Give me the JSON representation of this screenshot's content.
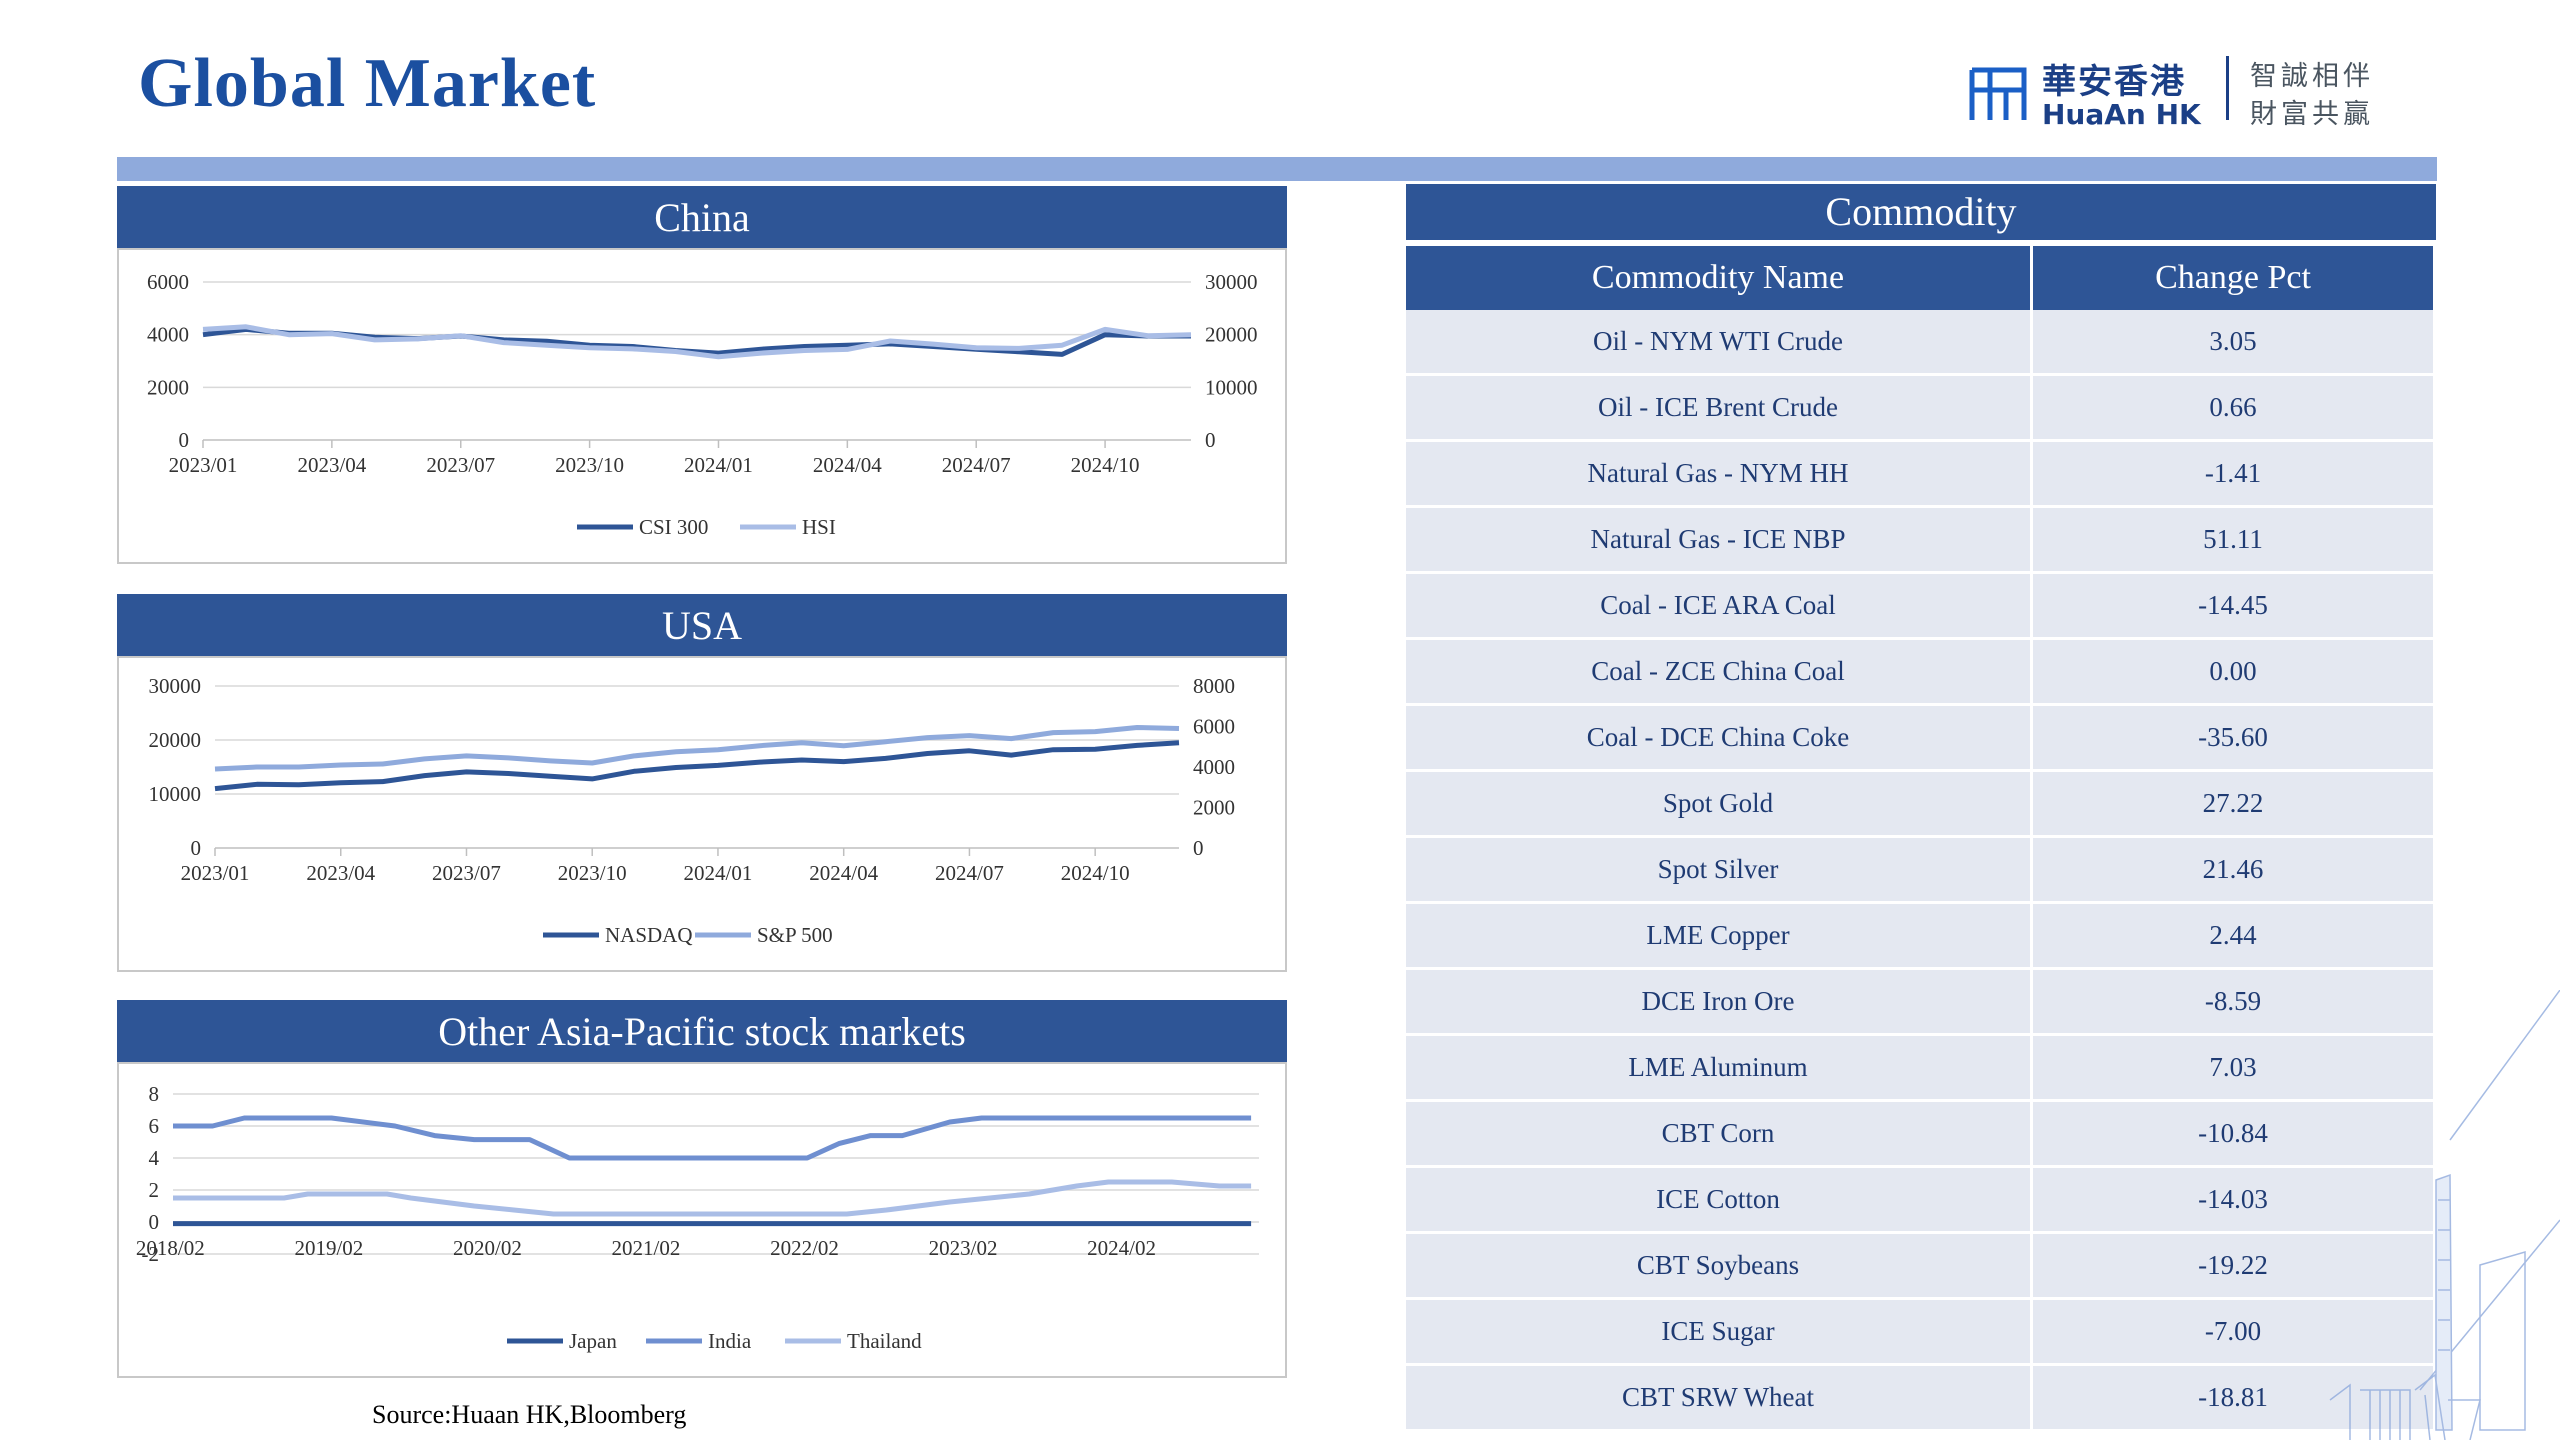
{
  "page": {
    "title": "Global Market",
    "source": "Source:Huaan HK,Bloomberg"
  },
  "logo": {
    "cn": "華安香港",
    "en": "HuaAn HK",
    "slogan_1": "智誠相伴",
    "slogan_2": "財富共贏"
  },
  "colors": {
    "header": "#2e5596",
    "bar": "#8faadc",
    "series_dark": "#2e5596",
    "series_mid": "#6f8fd0",
    "series_light": "#a9bde6"
  },
  "panels": {
    "china": "China",
    "usa": "USA",
    "apac": "Other Asia-Pacific stock markets"
  },
  "chart_data": [
    {
      "type": "line",
      "title": "China",
      "x_ticks": [
        "2023/01",
        "2023/04",
        "2023/07",
        "2023/10",
        "2024/01",
        "2024/04",
        "2024/07",
        "2024/10"
      ],
      "y_left_ticks": [
        "0",
        "2000",
        "4000",
        "6000"
      ],
      "y_right_ticks": [
        "0",
        "10000",
        "20000",
        "30000"
      ],
      "ylim_left": [
        0,
        6000
      ],
      "ylim_right": [
        0,
        30000
      ],
      "grid": true,
      "legend_position": "bottom",
      "series": [
        {
          "name": "CSI 300",
          "axis": "left",
          "color": "#2e5596",
          "x": [
            "2023/01",
            "2023/02",
            "2023/03",
            "2023/04",
            "2023/05",
            "2023/06",
            "2023/07",
            "2023/08",
            "2023/09",
            "2023/10",
            "2023/11",
            "2023/12",
            "2024/01",
            "2024/02",
            "2024/03",
            "2024/04",
            "2024/05",
            "2024/06",
            "2024/07",
            "2024/08",
            "2024/09",
            "2024/10",
            "2024/11",
            "2024/12"
          ],
          "values": [
            4000,
            4200,
            4050,
            4050,
            3900,
            3850,
            3950,
            3800,
            3750,
            3600,
            3550,
            3400,
            3300,
            3450,
            3550,
            3600,
            3650,
            3550,
            3450,
            3350,
            3250,
            4000,
            3950,
            3950
          ]
        },
        {
          "name": "HSI",
          "axis": "right",
          "color": "#a9bde6",
          "x": [
            "2023/01",
            "2023/02",
            "2023/03",
            "2023/04",
            "2023/05",
            "2023/06",
            "2023/07",
            "2023/08",
            "2023/09",
            "2023/10",
            "2023/11",
            "2023/12",
            "2024/01",
            "2024/02",
            "2024/03",
            "2024/04",
            "2024/05",
            "2024/06",
            "2024/07",
            "2024/08",
            "2024/09",
            "2024/10",
            "2024/11",
            "2024/12"
          ],
          "values": [
            21000,
            21500,
            20000,
            20200,
            19000,
            19200,
            19800,
            18500,
            18000,
            17500,
            17300,
            16800,
            15800,
            16500,
            17000,
            17200,
            18800,
            18200,
            17500,
            17400,
            18000,
            21000,
            19800,
            20000
          ]
        }
      ]
    },
    {
      "type": "line",
      "title": "USA",
      "x_ticks": [
        "2023/01",
        "2023/04",
        "2023/07",
        "2023/10",
        "2024/01",
        "2024/04",
        "2024/07",
        "2024/10"
      ],
      "y_left_ticks": [
        "0",
        "10000",
        "20000",
        "30000"
      ],
      "y_right_ticks": [
        "0",
        "2000",
        "4000",
        "6000",
        "8000"
      ],
      "ylim_left": [
        0,
        30000
      ],
      "ylim_right": [
        0,
        8000
      ],
      "grid": true,
      "legend_position": "bottom",
      "series": [
        {
          "name": "NASDAQ",
          "axis": "left",
          "color": "#2e5596",
          "x": [
            "2023/01",
            "2023/02",
            "2023/03",
            "2023/04",
            "2023/05",
            "2023/06",
            "2023/07",
            "2023/08",
            "2023/09",
            "2023/10",
            "2023/11",
            "2023/12",
            "2024/01",
            "2024/02",
            "2024/03",
            "2024/04",
            "2024/05",
            "2024/06",
            "2024/07",
            "2024/08",
            "2024/09",
            "2024/10",
            "2024/11",
            "2024/12"
          ],
          "values": [
            11000,
            11800,
            11700,
            12100,
            12300,
            13400,
            14100,
            13800,
            13300,
            12800,
            14200,
            14900,
            15300,
            15900,
            16300,
            16000,
            16600,
            17500,
            18000,
            17200,
            18200,
            18300,
            19000,
            19500
          ]
        },
        {
          "name": "S&P 500",
          "axis": "right",
          "color": "#8faadc",
          "x": [
            "2023/01",
            "2023/02",
            "2023/03",
            "2023/04",
            "2023/05",
            "2023/06",
            "2023/07",
            "2023/08",
            "2023/09",
            "2023/10",
            "2023/11",
            "2023/12",
            "2024/01",
            "2024/02",
            "2024/03",
            "2024/04",
            "2024/05",
            "2024/06",
            "2024/07",
            "2024/08",
            "2024/09",
            "2024/10",
            "2024/11",
            "2024/12"
          ],
          "values": [
            3900,
            4000,
            4000,
            4100,
            4150,
            4400,
            4550,
            4450,
            4300,
            4200,
            4550,
            4750,
            4850,
            5050,
            5200,
            5050,
            5250,
            5450,
            5550,
            5400,
            5700,
            5750,
            5950,
            5900
          ]
        }
      ]
    },
    {
      "type": "line",
      "title": "Other Asia-Pacific stock markets",
      "x_ticks": [
        "2018/02",
        "2019/02",
        "2020/02",
        "2021/02",
        "2022/02",
        "2023/02",
        "2024/02"
      ],
      "y_ticks": [
        "-2",
        "0",
        "2",
        "4",
        "6",
        "8"
      ],
      "ylim": [
        -2,
        8
      ],
      "grid": true,
      "legend_position": "bottom",
      "series": [
        {
          "name": "Japan",
          "color": "#2e5596",
          "x": [
            2018.1,
            2019.1,
            2020.1,
            2021.1,
            2022.1,
            2023.1,
            2024.1,
            2024.9
          ],
          "values": [
            -0.1,
            -0.1,
            -0.1,
            -0.1,
            -0.1,
            -0.1,
            -0.1,
            -0.1
          ]
        },
        {
          "name": "India",
          "color": "#6f8fd0",
          "x": [
            2018.1,
            2018.35,
            2018.55,
            2019.1,
            2019.5,
            2019.75,
            2020.0,
            2020.35,
            2020.6,
            2021.0,
            2021.5,
            2022.1,
            2022.3,
            2022.5,
            2022.7,
            2023.0,
            2023.2,
            2024.1,
            2024.9
          ],
          "values": [
            6.0,
            6.0,
            6.5,
            6.5,
            6.0,
            5.4,
            5.15,
            5.15,
            4.0,
            4.0,
            4.0,
            4.0,
            4.9,
            5.4,
            5.4,
            6.25,
            6.5,
            6.5,
            6.5
          ]
        },
        {
          "name": "Thailand",
          "color": "#a9bde6",
          "x": [
            2018.1,
            2018.8,
            2018.95,
            2019.45,
            2019.6,
            2019.8,
            2020.0,
            2020.25,
            2020.5,
            2021.0,
            2022.0,
            2022.35,
            2022.6,
            2023.0,
            2023.5,
            2023.8,
            2024.0,
            2024.4,
            2024.7,
            2024.9
          ],
          "values": [
            1.5,
            1.5,
            1.75,
            1.75,
            1.5,
            1.25,
            1.0,
            0.75,
            0.5,
            0.5,
            0.5,
            0.5,
            0.75,
            1.25,
            1.75,
            2.25,
            2.5,
            2.5,
            2.25,
            2.25
          ]
        }
      ]
    }
  ],
  "commodity": {
    "title": "Commodity",
    "headers": [
      "Commodity Name",
      "Change Pct"
    ],
    "rows": [
      [
        "Oil - NYM WTI Crude",
        "3.05"
      ],
      [
        "Oil - ICE Brent Crude",
        "0.66"
      ],
      [
        "Natural Gas - NYM HH",
        "-1.41"
      ],
      [
        "Natural Gas - ICE NBP",
        "51.11"
      ],
      [
        "Coal - ICE ARA Coal",
        "-14.45"
      ],
      [
        "Coal - ZCE China Coal",
        "0.00"
      ],
      [
        "Coal - DCE China Coke",
        "-35.60"
      ],
      [
        "Spot Gold",
        "27.22"
      ],
      [
        "Spot Silver",
        "21.46"
      ],
      [
        "LME Copper",
        "2.44"
      ],
      [
        "DCE Iron Ore",
        "-8.59"
      ],
      [
        "LME Aluminum",
        "7.03"
      ],
      [
        "CBT Corn",
        "-10.84"
      ],
      [
        "ICE Cotton",
        "-14.03"
      ],
      [
        "CBT Soybeans",
        "-19.22"
      ],
      [
        "ICE Sugar",
        "-7.00"
      ],
      [
        "CBT SRW Wheat",
        "-18.81"
      ]
    ]
  }
}
